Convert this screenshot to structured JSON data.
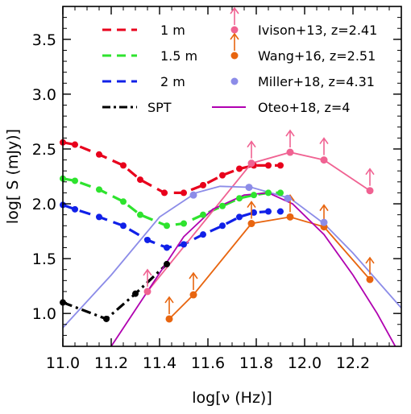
{
  "chart_data": {
    "type": "line",
    "xlabel": "log[ν (Hz)]",
    "ylabel": "log[ S (mJy)]",
    "xlim": [
      11.0,
      12.4
    ],
    "ylim": [
      0.7,
      3.8
    ],
    "xticks": [
      11.0,
      11.2,
      11.4,
      11.6,
      11.8,
      12.0,
      12.2
    ],
    "xtick_labels": [
      "11.0",
      "11.2",
      "11.4",
      "11.6",
      "11.8",
      "12.0",
      "12.2"
    ],
    "yticks": [
      1.0,
      1.5,
      2.0,
      2.5,
      3.0,
      3.5
    ],
    "ytick_labels": [
      "1.0",
      "1.5",
      "2.0",
      "2.5",
      "3.0",
      "3.5"
    ],
    "grid": false,
    "legend_placement": "top",
    "series": [
      {
        "name": "1 m",
        "style": "dashed",
        "color": "#e8001c",
        "markers": true,
        "x": [
          11.0,
          11.05,
          11.15,
          11.25,
          11.32,
          11.42,
          11.5,
          11.58,
          11.66,
          11.73,
          11.79,
          11.85,
          11.9
        ],
        "y": [
          2.56,
          2.54,
          2.45,
          2.35,
          2.22,
          2.1,
          2.1,
          2.17,
          2.26,
          2.32,
          2.35,
          2.35,
          2.35
        ]
      },
      {
        "name": "1.5 m",
        "style": "dashed",
        "color": "#2ee32e",
        "markers": true,
        "x": [
          11.0,
          11.05,
          11.15,
          11.25,
          11.32,
          11.43,
          11.5,
          11.58,
          11.66,
          11.73,
          11.79,
          11.85,
          11.9
        ],
        "y": [
          2.23,
          2.21,
          2.13,
          2.02,
          1.9,
          1.8,
          1.82,
          1.9,
          1.98,
          2.05,
          2.08,
          2.1,
          2.1
        ]
      },
      {
        "name": "2 m",
        "style": "dashed",
        "color": "#1020e8",
        "markers": true,
        "x": [
          11.0,
          11.05,
          11.15,
          11.25,
          11.35,
          11.43,
          11.5,
          11.58,
          11.66,
          11.73,
          11.79,
          11.85,
          11.9
        ],
        "y": [
          1.99,
          1.95,
          1.88,
          1.8,
          1.67,
          1.6,
          1.63,
          1.72,
          1.8,
          1.88,
          1.92,
          1.93,
          1.93
        ]
      },
      {
        "name": "SPT",
        "style": "dashdot",
        "color": "#000000",
        "markers": true,
        "x": [
          11.0,
          11.18,
          11.3,
          11.43
        ],
        "y": [
          1.1,
          0.95,
          1.18,
          1.45
        ]
      },
      {
        "name": "Ivison+13, z=2.41",
        "style": "solid",
        "color": "#f06292",
        "markers": true,
        "x": [
          11.35,
          11.78,
          11.94,
          12.08,
          12.27
        ],
        "y": [
          1.2,
          2.37,
          2.47,
          2.4,
          2.12
        ],
        "points_x": [
          11.35,
          11.78,
          11.94,
          12.08,
          12.27
        ],
        "points_y": [
          1.2,
          2.37,
          2.47,
          2.4,
          2.12
        ],
        "lower_limits": true
      },
      {
        "name": "Wang+16, z=2.51",
        "style": "solid",
        "color": "#e8650f",
        "markers": true,
        "x": [
          11.44,
          11.54,
          11.78,
          11.94,
          12.08,
          12.27
        ],
        "y": [
          0.95,
          1.17,
          1.82,
          1.88,
          1.79,
          1.31
        ],
        "lower_limits": true
      },
      {
        "name": "Miller+18, z=4.31",
        "style": "solid",
        "color": "#8c8ce8",
        "markers": true,
        "x": [
          10.95,
          11.2,
          11.4,
          11.55,
          11.65,
          11.78,
          11.94,
          12.08,
          12.2,
          12.4
        ],
        "y": [
          0.75,
          1.35,
          1.88,
          2.1,
          2.16,
          2.15,
          2.05,
          1.82,
          1.55,
          1.05
        ],
        "points_x": [
          11.54,
          11.77,
          11.93,
          12.08
        ],
        "points_y": [
          2.08,
          2.15,
          2.05,
          1.83
        ]
      },
      {
        "name": "Oteo+18, z=4",
        "style": "solid",
        "color": "#b000b0",
        "markers": false,
        "x": [
          11.0,
          11.2,
          11.38,
          11.5,
          11.62,
          11.75,
          11.85,
          11.95,
          12.08,
          12.2,
          12.3,
          12.4
        ],
        "y": [
          0.2,
          0.7,
          1.3,
          1.7,
          1.95,
          2.08,
          2.1,
          2.0,
          1.72,
          1.35,
          1.0,
          0.6
        ]
      }
    ]
  }
}
